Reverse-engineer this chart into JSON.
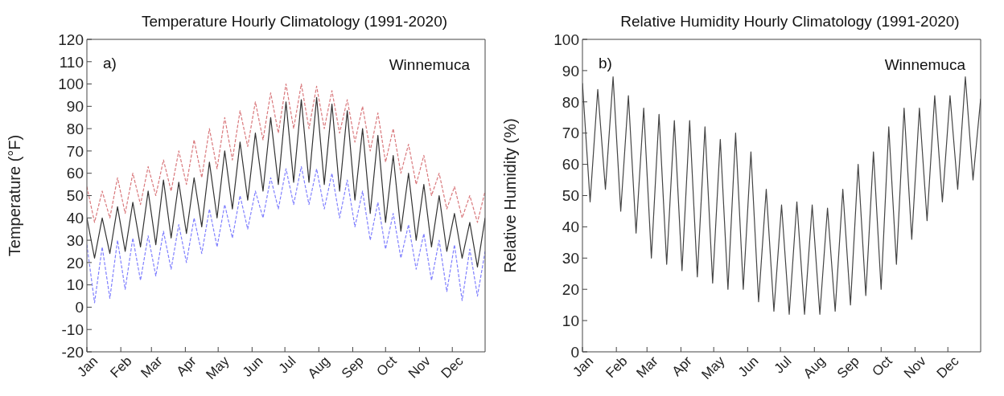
{
  "chart_data": [
    {
      "type": "line",
      "title": "Temperature Hourly Climatology (1991-2020)",
      "ylabel": "Temperature (°F)",
      "annotations": [
        "a)",
        "Winnemuca"
      ],
      "x": [
        "--01-01",
        "--01-08",
        "--01-15",
        "--01-22",
        "--01-29",
        "--02-05",
        "--02-12",
        "--02-19",
        "--02-26",
        "--03-05",
        "--03-12",
        "--03-19",
        "--03-26",
        "--04-02",
        "--04-09",
        "--04-16",
        "--04-23",
        "--04-30",
        "--05-07",
        "--05-14",
        "--05-21",
        "--05-28",
        "--06-04",
        "--06-11",
        "--06-18",
        "--06-25",
        "--07-02",
        "--07-09",
        "--07-16",
        "--07-23",
        "--07-30",
        "--08-06",
        "--08-13",
        "--08-20",
        "--08-27",
        "--09-03",
        "--09-10",
        "--09-17",
        "--09-24",
        "--10-01",
        "--10-08",
        "--10-15",
        "--10-22",
        "--10-29",
        "--11-05",
        "--11-12",
        "--11-19",
        "--11-26",
        "--12-03",
        "--12-10",
        "--12-17",
        "--12-24",
        "--12-31"
      ],
      "xlim": [
        "--01-01",
        "--12-31"
      ],
      "xticks": [
        {
          "value": "--01-01",
          "label": "Jan"
        },
        {
          "value": "--02-01",
          "label": "Feb"
        },
        {
          "value": "--03-01",
          "label": "Mar"
        },
        {
          "value": "--04-01",
          "label": "Apr"
        },
        {
          "value": "--05-01",
          "label": "May"
        },
        {
          "value": "--06-01",
          "label": "Jun"
        },
        {
          "value": "--07-01",
          "label": "Jul"
        },
        {
          "value": "--08-01",
          "label": "Aug"
        },
        {
          "value": "--09-01",
          "label": "Sep"
        },
        {
          "value": "--10-01",
          "label": "Oct"
        },
        {
          "value": "--11-01",
          "label": "Nov"
        },
        {
          "value": "--12-01",
          "label": "Dec"
        }
      ],
      "ylim": [
        -20,
        120
      ],
      "yticks": [
        -20,
        -10,
        0,
        10,
        20,
        30,
        40,
        50,
        60,
        70,
        80,
        90,
        100,
        110,
        120
      ],
      "series": [
        {
          "color": "#d9787c",
          "line_style": "dashed",
          "values": [
            54,
            38,
            52,
            40,
            58,
            42,
            60,
            46,
            63,
            50,
            66,
            52,
            70,
            55,
            75,
            58,
            80,
            62,
            85,
            66,
            88,
            72,
            92,
            75,
            96,
            78,
            100,
            80,
            100,
            80,
            99,
            80,
            97,
            78,
            93,
            74,
            90,
            70,
            87,
            65,
            80,
            60,
            73,
            55,
            68,
            50,
            60,
            44,
            54,
            40,
            50,
            38,
            52
          ]
        },
        {
          "color": "#8080ff",
          "line_style": "dashed",
          "values": [
            28,
            2,
            27,
            4,
            30,
            8,
            31,
            12,
            32,
            14,
            34,
            17,
            37,
            20,
            40,
            24,
            44,
            27,
            46,
            31,
            50,
            35,
            52,
            40,
            58,
            44,
            62,
            46,
            63,
            46,
            62,
            44,
            60,
            40,
            57,
            36,
            52,
            30,
            47,
            26,
            42,
            22,
            37,
            17,
            33,
            12,
            30,
            7,
            28,
            3,
            26,
            5,
            25
          ]
        },
        {
          "color": "#333333",
          "line_style": "solid",
          "values": [
            40,
            22,
            40,
            24,
            45,
            25,
            47,
            27,
            52,
            28,
            57,
            31,
            56,
            33,
            58,
            36,
            65,
            40,
            70,
            44,
            74,
            48,
            78,
            52,
            85,
            55,
            92,
            56,
            93,
            56,
            94,
            55,
            91,
            52,
            88,
            48,
            80,
            42,
            77,
            38,
            68,
            34,
            60,
            30,
            55,
            27,
            50,
            25,
            42,
            22,
            38,
            18,
            40
          ]
        }
      ]
    },
    {
      "type": "line",
      "title": "Relative Humidity Hourly Climatology (1991-2020)",
      "ylabel": "Relative Humidity (%)",
      "annotations": [
        "b)",
        "Winnemuca"
      ],
      "x": [
        "--01-01",
        "--01-08",
        "--01-15",
        "--01-22",
        "--01-29",
        "--02-05",
        "--02-12",
        "--02-19",
        "--02-26",
        "--03-05",
        "--03-12",
        "--03-19",
        "--03-26",
        "--04-02",
        "--04-09",
        "--04-16",
        "--04-23",
        "--04-30",
        "--05-07",
        "--05-14",
        "--05-21",
        "--05-28",
        "--06-04",
        "--06-11",
        "--06-18",
        "--06-25",
        "--07-02",
        "--07-09",
        "--07-16",
        "--07-23",
        "--07-30",
        "--08-06",
        "--08-13",
        "--08-20",
        "--08-27",
        "--09-03",
        "--09-10",
        "--09-17",
        "--09-24",
        "--10-01",
        "--10-08",
        "--10-15",
        "--10-22",
        "--10-29",
        "--11-05",
        "--11-12",
        "--11-19",
        "--11-26",
        "--12-03",
        "--12-10",
        "--12-17",
        "--12-24",
        "--12-31"
      ],
      "xlim": [
        "--01-01",
        "--12-31"
      ],
      "xticks": [
        {
          "value": "--01-01",
          "label": "Jan"
        },
        {
          "value": "--02-01",
          "label": "Feb"
        },
        {
          "value": "--03-01",
          "label": "Mar"
        },
        {
          "value": "--04-01",
          "label": "Apr"
        },
        {
          "value": "--05-01",
          "label": "May"
        },
        {
          "value": "--06-01",
          "label": "Jun"
        },
        {
          "value": "--07-01",
          "label": "Jul"
        },
        {
          "value": "--08-01",
          "label": "Aug"
        },
        {
          "value": "--09-01",
          "label": "Sep"
        },
        {
          "value": "--10-01",
          "label": "Oct"
        },
        {
          "value": "--11-01",
          "label": "Nov"
        },
        {
          "value": "--12-01",
          "label": "Dec"
        }
      ],
      "ylim": [
        0,
        100
      ],
      "yticks": [
        0,
        10,
        20,
        30,
        40,
        50,
        60,
        70,
        80,
        90,
        100
      ],
      "series": [
        {
          "color": "#444444",
          "line_style": "solid",
          "values": [
            86,
            48,
            84,
            52,
            88,
            45,
            82,
            38,
            78,
            30,
            76,
            28,
            74,
            26,
            74,
            24,
            72,
            22,
            68,
            20,
            70,
            20,
            64,
            16,
            52,
            13,
            47,
            12,
            48,
            12,
            47,
            12,
            46,
            13,
            52,
            15,
            60,
            18,
            64,
            20,
            72,
            28,
            78,
            36,
            78,
            42,
            82,
            48,
            82,
            52,
            88,
            55,
            81
          ]
        }
      ]
    }
  ]
}
